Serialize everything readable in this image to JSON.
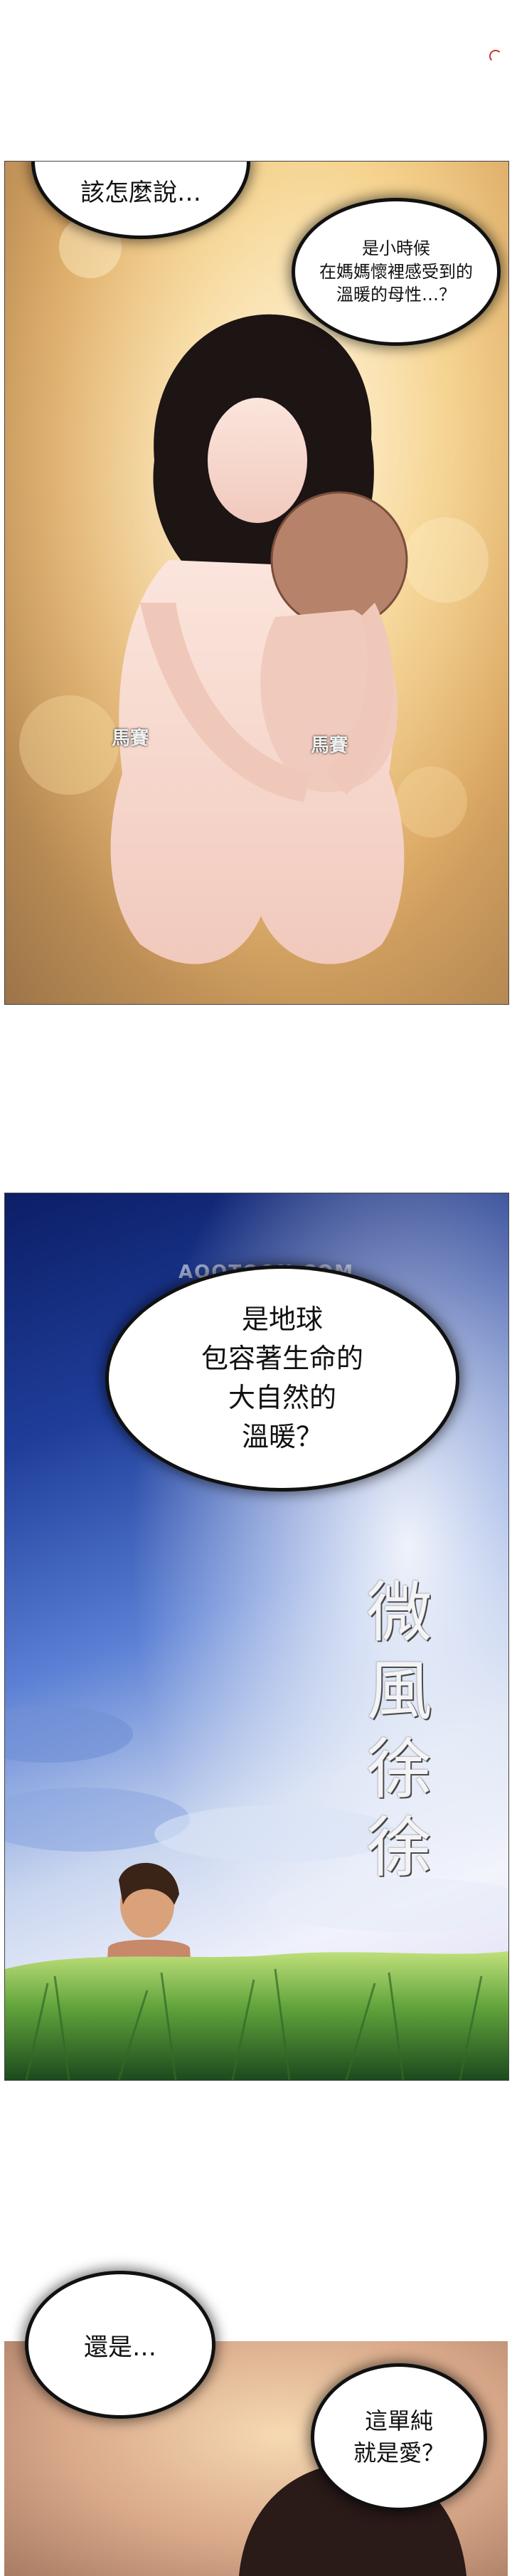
{
  "panel1": {
    "bubble_top": "該怎麼說…",
    "bubble_right_lines": [
      "是小時候",
      "在媽媽懷裡感受到的",
      "溫暖的母性…？"
    ],
    "censor_left": "馬賽",
    "censor_right": "馬賽"
  },
  "panel2": {
    "watermark": "AOOTOON.COM",
    "bubble_lines": [
      "是地球",
      "包容著生命的",
      "大自然的",
      "溫暖？"
    ],
    "sfx": "微風徐徐"
  },
  "panel3": {
    "bubble_left": "還是…",
    "bubble_right_lines": [
      "這單純",
      "就是愛？"
    ]
  }
}
